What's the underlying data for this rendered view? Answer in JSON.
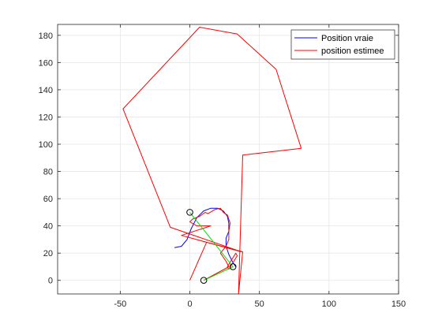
{
  "chart_data": {
    "type": "line",
    "title": "",
    "xlabel": "",
    "ylabel": "",
    "xlim": [
      -95,
      150
    ],
    "ylim": [
      -10,
      188
    ],
    "x_ticks": [
      -50,
      0,
      50,
      100,
      150
    ],
    "y_ticks": [
      0,
      20,
      40,
      60,
      80,
      100,
      120,
      140,
      160,
      180
    ],
    "grid": true,
    "legend_position": "top-right",
    "colors": {
      "true": "#0000ff",
      "estimated": "#ff0000",
      "link": "#00dd00",
      "marker": "#000000",
      "axis": "#262626",
      "grid": "#e6e6e6"
    },
    "legend": [
      {
        "label": "Position vraie",
        "color": "#0000ff"
      },
      {
        "label": "position estimee",
        "color": "#ff0000"
      }
    ],
    "series": [
      {
        "name": "Position vraie",
        "color": "#0000ff",
        "points": [
          [
            -11,
            24
          ],
          [
            -6,
            25
          ],
          [
            -2,
            30
          ],
          [
            1,
            38
          ],
          [
            5,
            46
          ],
          [
            10,
            51
          ],
          [
            15,
            53
          ],
          [
            20,
            53
          ],
          [
            24,
            51
          ],
          [
            27,
            47
          ],
          [
            28,
            42
          ],
          [
            28,
            36
          ],
          [
            26,
            31
          ],
          [
            26,
            25
          ],
          [
            28,
            19
          ],
          [
            31,
            13
          ],
          [
            33,
            10
          ]
        ]
      },
      {
        "name": "position estimee",
        "color": "#ff0000",
        "points": [
          [
            10,
            0
          ],
          [
            28,
            10
          ],
          [
            26,
            14
          ],
          [
            22,
            20
          ],
          [
            26,
            25
          ],
          [
            28,
            30
          ],
          [
            28,
            36
          ],
          [
            29,
            42
          ],
          [
            27,
            48
          ],
          [
            24,
            50
          ],
          [
            22,
            53
          ],
          [
            18,
            52
          ],
          [
            13,
            49
          ],
          [
            11,
            50
          ],
          [
            7,
            47
          ],
          [
            2,
            45
          ],
          [
            0,
            43
          ],
          [
            5,
            40
          ],
          [
            15,
            40
          ],
          [
            -6,
            33
          ],
          [
            37,
            21
          ],
          [
            -14,
            39
          ],
          [
            -48,
            126
          ],
          [
            7,
            186
          ],
          [
            34,
            181
          ],
          [
            62,
            155
          ],
          [
            80,
            97
          ],
          [
            38,
            92
          ],
          [
            35,
            -10
          ],
          [
            38,
            21
          ],
          [
            12,
            28
          ],
          [
            0,
            0
          ]
        ]
      },
      {
        "name": "",
        "color": "#ff0000",
        "points": [
          [
            28,
            8
          ],
          [
            31,
            13
          ],
          [
            34,
            18
          ],
          [
            33,
            20
          ],
          [
            30,
            15
          ],
          [
            27,
            10
          ],
          [
            28,
            8
          ]
        ]
      },
      {
        "name": "",
        "color": "#00dd00",
        "points": [
          [
            0,
            50
          ],
          [
            31,
            10
          ],
          [
            10,
            0
          ]
        ]
      }
    ],
    "markers": [
      {
        "x": 0,
        "y": 50
      },
      {
        "x": 31,
        "y": 10
      },
      {
        "x": 10,
        "y": 0
      }
    ]
  }
}
